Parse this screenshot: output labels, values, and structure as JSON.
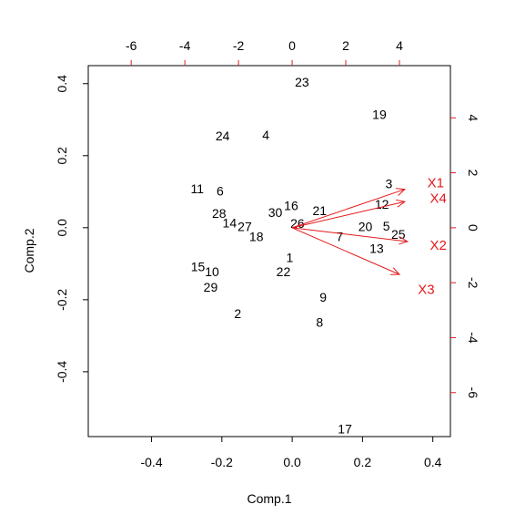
{
  "chart_data": {
    "type": "scatter",
    "subtype": "biplot",
    "title": "",
    "xlabel": "Comp.1",
    "ylabel": "Comp.2",
    "xlim": [
      -0.58,
      0.45
    ],
    "ylim": [
      -0.58,
      0.45
    ],
    "xticks": [
      -0.4,
      -0.2,
      0.0,
      0.2,
      0.4
    ],
    "xtick_labels": [
      "-0.4",
      "-0.2",
      "0.0",
      "0.2",
      "0.4"
    ],
    "yticks": [
      -0.4,
      -0.2,
      0.0,
      0.2,
      0.4
    ],
    "ytick_labels": [
      "-0.4",
      "-0.2",
      "0.0",
      "0.2",
      "0.4"
    ],
    "secondary_axis_color": "#e41a1c",
    "secondary_lim": [
      -7.6,
      5.9
    ],
    "top_ticks": [
      -6,
      -4,
      -2,
      0,
      2,
      4
    ],
    "top_tick_labels": [
      "-6",
      "-4",
      "-2",
      "0",
      "2",
      "4"
    ],
    "right_ticks": [
      -6,
      -4,
      -2,
      0,
      2,
      4
    ],
    "right_tick_labels": [
      "-6",
      "-4",
      "-2",
      "0",
      "2",
      "4"
    ],
    "grid": false,
    "legend": "none",
    "points": [
      {
        "label": "1",
        "x": -0.007,
        "y": -0.083
      },
      {
        "label": "2",
        "x": -0.155,
        "y": -0.238
      },
      {
        "label": "3",
        "x": 0.275,
        "y": 0.122
      },
      {
        "label": "4",
        "x": -0.075,
        "y": 0.258
      },
      {
        "label": "5",
        "x": 0.268,
        "y": 0.005
      },
      {
        "label": "6",
        "x": -0.205,
        "y": 0.102
      },
      {
        "label": "7",
        "x": 0.135,
        "y": -0.025
      },
      {
        "label": "8",
        "x": 0.078,
        "y": -0.262
      },
      {
        "label": "9",
        "x": 0.088,
        "y": -0.193
      },
      {
        "label": "10",
        "x": -0.228,
        "y": -0.122
      },
      {
        "label": "11",
        "x": -0.27,
        "y": 0.108
      },
      {
        "label": "12",
        "x": 0.255,
        "y": 0.065
      },
      {
        "label": "13",
        "x": 0.24,
        "y": -0.058
      },
      {
        "label": "14",
        "x": -0.178,
        "y": 0.013
      },
      {
        "label": "15",
        "x": -0.268,
        "y": -0.108
      },
      {
        "label": "16",
        "x": -0.003,
        "y": 0.062
      },
      {
        "label": "17",
        "x": 0.15,
        "y": -0.558
      },
      {
        "label": "18",
        "x": -0.102,
        "y": -0.025
      },
      {
        "label": "19",
        "x": 0.248,
        "y": 0.315
      },
      {
        "label": "20",
        "x": 0.208,
        "y": 0.003
      },
      {
        "label": "21",
        "x": 0.078,
        "y": 0.048
      },
      {
        "label": "22",
        "x": -0.025,
        "y": -0.122
      },
      {
        "label": "23",
        "x": 0.028,
        "y": 0.405
      },
      {
        "label": "24",
        "x": -0.198,
        "y": 0.255
      },
      {
        "label": "25",
        "x": 0.302,
        "y": -0.018
      },
      {
        "label": "26",
        "x": 0.015,
        "y": 0.012
      },
      {
        "label": "27",
        "x": -0.135,
        "y": 0.003
      },
      {
        "label": "28",
        "x": -0.208,
        "y": 0.04
      },
      {
        "label": "29",
        "x": -0.232,
        "y": -0.165
      },
      {
        "label": "30",
        "x": -0.048,
        "y": 0.043
      }
    ],
    "loadings": [
      {
        "name": "X1",
        "x": 4.2,
        "y": 1.4,
        "label_x": 5.35,
        "label_y": 1.64
      },
      {
        "name": "X4",
        "x": 4.2,
        "y": 0.95,
        "label_x": 5.45,
        "label_y": 1.08
      },
      {
        "name": "X2",
        "x": 4.3,
        "y": -0.5,
        "label_x": 5.45,
        "label_y": -0.64
      },
      {
        "name": "X3",
        "x": 4.0,
        "y": -1.7,
        "label_x": 5.0,
        "label_y": -2.25
      }
    ],
    "loadings_color": "#e41a1c"
  }
}
